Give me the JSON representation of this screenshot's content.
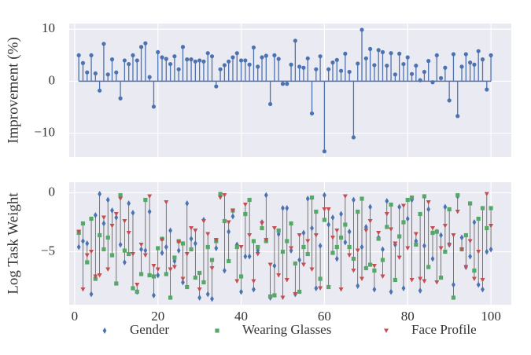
{
  "chart_data": [
    {
      "type": "stem",
      "ylabel": "Improvement (%)",
      "color": "#4c72b0",
      "x": [
        1,
        2,
        3,
        4,
        5,
        6,
        7,
        8,
        9,
        10,
        11,
        12,
        13,
        14,
        15,
        16,
        17,
        18,
        19,
        20,
        21,
        22,
        23,
        24,
        25,
        26,
        27,
        28,
        29,
        30,
        31,
        32,
        33,
        34,
        35,
        36,
        37,
        38,
        39,
        40,
        41,
        42,
        43,
        44,
        45,
        46,
        47,
        48,
        49,
        50,
        51,
        52,
        53,
        54,
        55,
        56,
        57,
        58,
        59,
        60,
        61,
        62,
        63,
        64,
        65,
        66,
        67,
        68,
        69,
        70,
        71,
        72,
        73,
        74,
        75,
        76,
        77,
        78,
        79,
        80,
        81,
        82,
        83,
        84,
        85,
        86,
        87,
        88,
        89,
        90,
        91,
        92,
        93,
        94,
        95,
        96,
        97,
        98,
        99,
        100
      ],
      "values": [
        5,
        3.5,
        1.7,
        5,
        1.5,
        -1.8,
        7.2,
        1.3,
        4.2,
        1.7,
        -3.3,
        4,
        3.3,
        5,
        4,
        6.6,
        7.3,
        0.8,
        -4.9,
        5.6,
        4.6,
        4.3,
        3.3,
        4.8,
        2.3,
        6.6,
        4.2,
        4.2,
        3.8,
        4,
        3.8,
        5.4,
        4.8,
        -1,
        2.3,
        3.1,
        3.8,
        4.6,
        5.4,
        4,
        4,
        3.2,
        6.5,
        2.8,
        4.6,
        4.9,
        -4.4,
        5,
        4.3,
        -0.5,
        -0.5,
        3.2,
        7.8,
        2.8,
        2.6,
        4.4,
        -6.2,
        2.3,
        4.8,
        -13.5,
        2.3,
        3.6,
        4.1,
        2,
        5.3,
        1.8,
        -10.8,
        3.4,
        9.9,
        4.4,
        6.2,
        3.1,
        6,
        5.6,
        3,
        5.4,
        1.3,
        5.3,
        3.3,
        4.6,
        1.4,
        3,
        0.2,
        1.8,
        3.9,
        -0.2,
        5,
        0.6,
        2.6,
        -3.7,
        5.2,
        -6.7,
        2.8,
        5.2,
        3.6,
        3.2,
        5.8,
        4.2,
        -1.6,
        5
      ],
      "xlim": [
        -1.3,
        104.9
      ],
      "xticks": [
        0,
        20,
        40,
        60,
        80,
        100
      ],
      "ylim": [
        -14.6,
        11.1
      ],
      "yticks": [
        {
          "value": -10,
          "label": "−10"
        },
        0,
        10
      ],
      "grid": true
    },
    {
      "type": "scatter",
      "ylabel": "Log Task Weight",
      "legend": "lower center",
      "x": [
        1,
        2,
        3,
        4,
        5,
        6,
        7,
        8,
        9,
        10,
        11,
        12,
        13,
        14,
        15,
        16,
        17,
        18,
        19,
        20,
        21,
        22,
        23,
        24,
        25,
        26,
        27,
        28,
        29,
        30,
        31,
        32,
        33,
        34,
        35,
        36,
        37,
        38,
        39,
        40,
        41,
        42,
        43,
        44,
        45,
        46,
        47,
        48,
        49,
        50,
        51,
        52,
        53,
        54,
        55,
        56,
        57,
        58,
        59,
        60,
        61,
        62,
        63,
        64,
        65,
        66,
        67,
        68,
        69,
        70,
        71,
        72,
        73,
        74,
        75,
        76,
        77,
        78,
        79,
        80,
        81,
        82,
        83,
        84,
        85,
        86,
        87,
        88,
        89,
        90,
        91,
        92,
        93,
        94,
        95,
        96,
        97,
        98,
        99,
        100
      ],
      "series": [
        {
          "name": "Gender",
          "color": "#4c72b0",
          "marker": "diamond",
          "values": [
            -4.6,
            -4.1,
            -4.3,
            -8.6,
            -1.9,
            -0.1,
            -2.6,
            -0.6,
            -1.5,
            -2.1,
            -4.4,
            -5.9,
            -0.9,
            -1.7,
            -8.4,
            -4.8,
            -4.9,
            -1.6,
            -8.7,
            -7.0,
            -5.1,
            -4.6,
            -3.2,
            -5.8,
            -4.9,
            -7.6,
            -0.9,
            -3.9,
            -4.3,
            -8.9,
            -2.3,
            -8.6,
            -9.0,
            -4.7,
            -0.3,
            -6.6,
            -3.3,
            -2.0,
            -4.4,
            -8.4,
            -5.4,
            -5.4,
            -8.2,
            -4.9,
            -2.5,
            -0.2,
            -8.9,
            -6.2,
            -3.5,
            -1.3,
            -1.3,
            -4.9,
            -8.6,
            -5.7,
            -3.4,
            -0.5,
            -3.0,
            -8.1,
            -4.5,
            -0.2,
            -2.7,
            -2.1,
            -5.6,
            -1.8,
            -4.2,
            -3.3,
            -0.6,
            -7.9,
            -4.6,
            -2.9,
            -1.2,
            -8.2,
            -3.8,
            -4.8,
            -0.7,
            -8.4,
            -4.4,
            -1.2,
            -8.1,
            -2.2,
            -0.6,
            -4.1,
            -8.3,
            -4.5,
            -1.4,
            -5.6,
            -3.3,
            -3.6,
            -1.2,
            -4.4,
            -7.8,
            -0.3,
            -3.8,
            -6.3,
            -5.4,
            -2.5,
            -7.8,
            -8.2,
            -5.0,
            -4.8
          ]
        },
        {
          "name": "Wearing Glasses",
          "color": "#55a868",
          "marker": "square",
          "values": [
            -3.4,
            -2.6,
            -5.9,
            -2.2,
            -7.3,
            -3.6,
            -4.8,
            -3.8,
            -5.3,
            -7.7,
            -0.2,
            -4.9,
            -5.2,
            -8.1,
            -8.4,
            -6.9,
            -0.6,
            -7.0,
            -7.1,
            -4.7,
            -3.9,
            -6.9,
            -8.9,
            -5.5,
            -4.1,
            -4.3,
            -8.0,
            -4.8,
            -7.2,
            -6.8,
            -7.6,
            -4.6,
            -5.7,
            -4.1,
            -0.1,
            -2.4,
            -5.8,
            -1.5,
            -4.6,
            -7.1,
            -1.8,
            -0.6,
            -4.1,
            -4.6,
            -3.0,
            -4.1,
            -8.8,
            -8.7,
            -3.2,
            -5.0,
            -4.1,
            -2.6,
            -6.0,
            -8.4,
            -4.6,
            -5.2,
            -0.4,
            -1.6,
            -7.3,
            -2.3,
            -8.0,
            -5.1,
            -4.6,
            -3.8,
            -2.7,
            -4.6,
            -5.6,
            -1.6,
            -0.5,
            -6.4,
            -6.1,
            -6.6,
            -3.9,
            -5.7,
            -2.9,
            -1.0,
            -7.4,
            -3.7,
            -2.5,
            -0.6,
            -0.4,
            -4.4,
            -1.8,
            -0.3,
            -6.3,
            -3.4,
            -3.3,
            -7.2,
            -5.0,
            -1.4,
            -8.9,
            -0.2,
            -4.8,
            -3.6,
            -0.9,
            -6.6,
            -2.2,
            -1.3,
            -3.0,
            -1.3
          ]
        },
        {
          "name": "Face Profile",
          "color": "#c44e52",
          "marker": "triangle-down",
          "values": [
            -3.3,
            -8.2,
            -5.3,
            -5.0,
            -7.1,
            -7.0,
            -2.1,
            -6.5,
            -2.8,
            -1.8,
            -0.5,
            -2.4,
            -3.4,
            -5.2,
            -7.8,
            -4.4,
            -5.3,
            -0.3,
            -6.2,
            -6.5,
            -4.0,
            -0.8,
            -6.5,
            -6.3,
            -4.2,
            -7.3,
            -5.2,
            -3.0,
            -3.2,
            -8.2,
            -2.4,
            -3.5,
            -6.4,
            -4.0,
            -0.4,
            -0.2,
            -2.5,
            -1.5,
            -7.5,
            -4.6,
            -1.0,
            -3.6,
            -7.5,
            -5.2,
            -2.6,
            -4.0,
            -6.1,
            -3.0,
            -7.0,
            -8.9,
            -7.4,
            -4.7,
            -8.6,
            -3.6,
            -6.1,
            -4.1,
            -6.5,
            -3.6,
            -8.1,
            -1.4,
            -1.4,
            -3.8,
            -3.2,
            -8.2,
            -0.3,
            -5.3,
            -6.6,
            -4.9,
            -7.3,
            -3.2,
            -2.4,
            -6.2,
            -3.4,
            -7.1,
            -1.8,
            -3.1,
            -4.3,
            -5.5,
            -1.1,
            -4.7,
            -7.4,
            -3.5,
            -7.3,
            -7.5,
            -0.8,
            -3.0,
            -7.6,
            -4.7,
            -2.8,
            -4.4,
            -3.6,
            -1.6,
            -4.8,
            -6.3,
            -4.1,
            -7.3,
            -5.0,
            -7.4,
            -0.1,
            -2.8
          ]
        }
      ],
      "xlim": [
        -1.3,
        104.9
      ],
      "xticks": [
        0,
        20,
        40,
        60,
        80,
        100
      ],
      "ylim": [
        -9.5,
        0.9
      ],
      "yticks": [
        {
          "value": -5,
          "label": "−5"
        },
        0
      ],
      "grid": true
    }
  ]
}
